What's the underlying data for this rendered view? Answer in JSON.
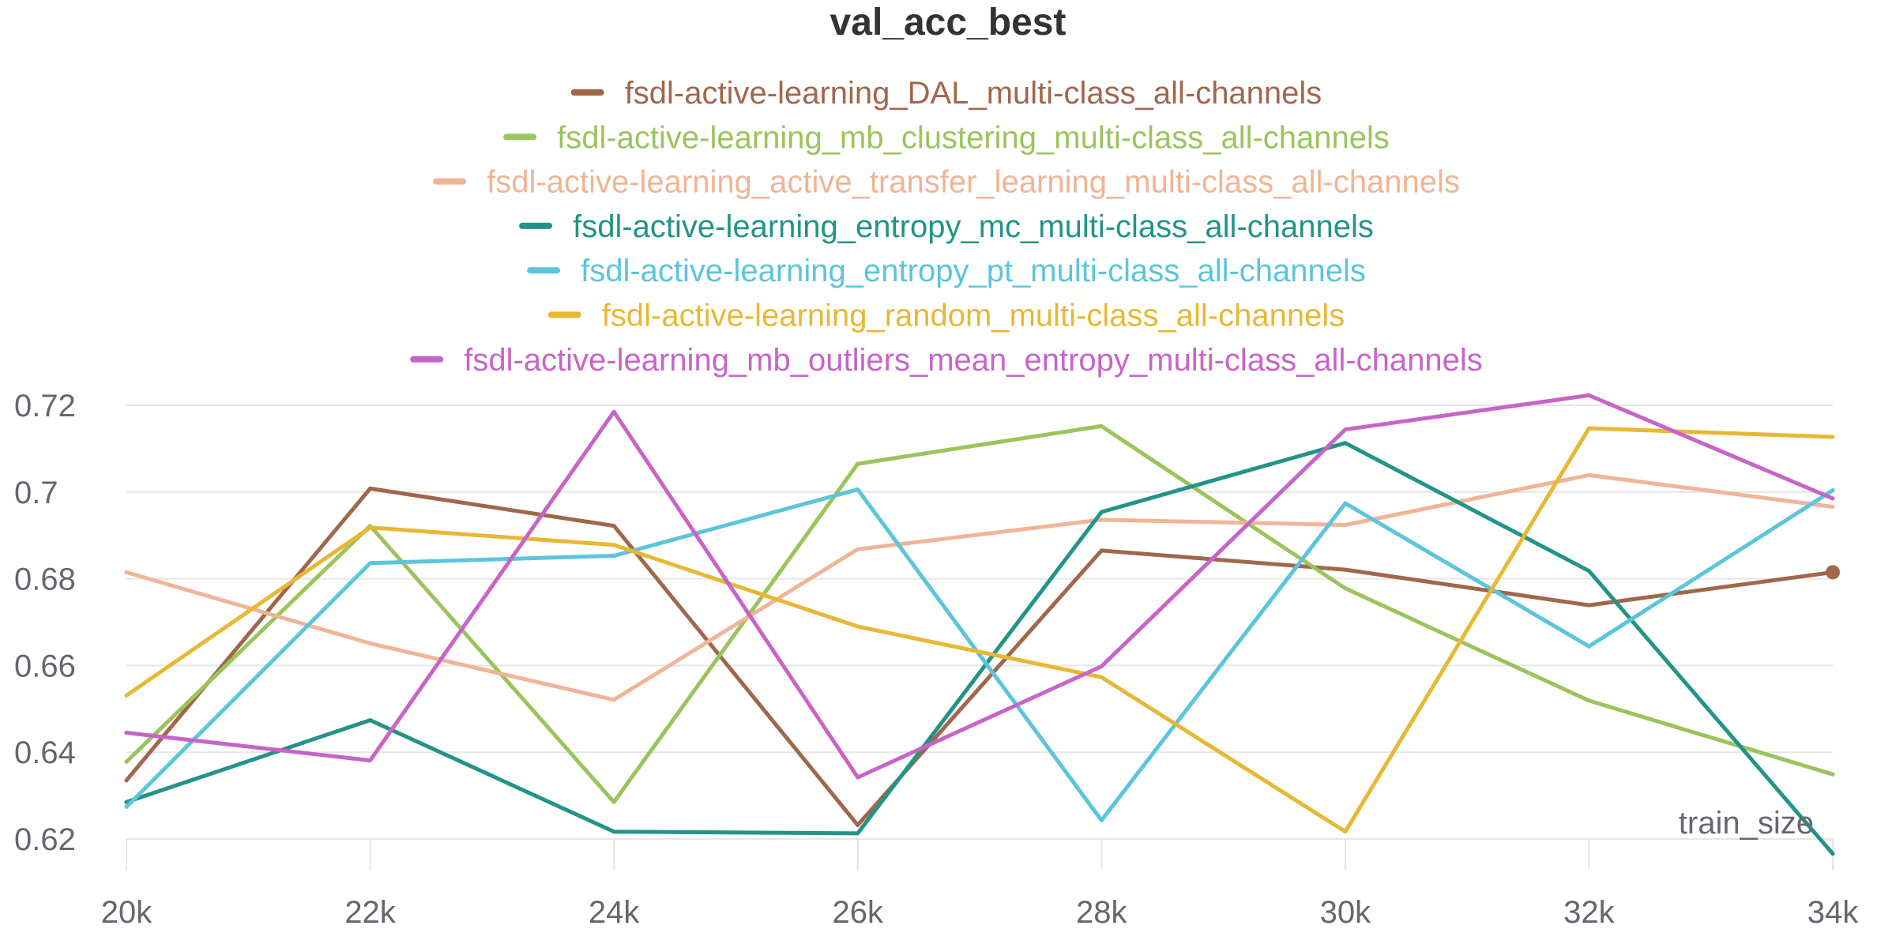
{
  "chart_data": {
    "type": "line",
    "title": "val_acc_best",
    "xlabel": "train_size",
    "ylabel": "",
    "x": [
      20000,
      22000,
      24000,
      26000,
      28000,
      30000,
      32000,
      34000
    ],
    "xticks": [
      "20k",
      "22k",
      "24k",
      "26k",
      "28k",
      "30k",
      "32k",
      "34k"
    ],
    "yticks": [
      "0.62",
      "0.64",
      "0.66",
      "0.68",
      "0.7",
      "0.72"
    ],
    "ylim": [
      0.62,
      0.72
    ],
    "grid": true,
    "legend_position": "top-center",
    "series": [
      {
        "name": "fsdl-active-learning_DAL_multi-class_all-channels",
        "color": "#a0674b",
        "values": [
          0.6335,
          0.7008,
          0.6922,
          0.6232,
          0.6865,
          0.6821,
          0.6739,
          0.6815
        ],
        "end_marker": true
      },
      {
        "name": "fsdl-active-learning_mb_clustering_multi-class_all-channels",
        "color": "#9bc45c",
        "values": [
          0.6378,
          0.6922,
          0.6285,
          0.7065,
          0.7152,
          0.6778,
          0.6519,
          0.6349
        ]
      },
      {
        "name": "fsdl-active-learning_active_transfer_learning_multi-class_all-channels",
        "color": "#efb596",
        "values": [
          0.6815,
          0.6651,
          0.6521,
          0.6868,
          0.6936,
          0.6924,
          0.7039,
          0.6966
        ]
      },
      {
        "name": "fsdl-active-learning_entropy_mc_multi-class_all-channels",
        "color": "#229487",
        "values": [
          0.6285,
          0.6474,
          0.6217,
          0.6213,
          0.6954,
          0.7113,
          0.6818,
          0.6166
        ]
      },
      {
        "name": "fsdl-active-learning_entropy_pt_multi-class_all-channels",
        "color": "#5bc5db",
        "values": [
          0.6274,
          0.6836,
          0.6853,
          0.7006,
          0.6243,
          0.6974,
          0.6644,
          0.7004
        ]
      },
      {
        "name": "fsdl-active-learning_random_multi-class_all-channels",
        "color": "#e8b834",
        "values": [
          0.6531,
          0.6918,
          0.6878,
          0.669,
          0.6573,
          0.6217,
          0.7147,
          0.7127
        ]
      },
      {
        "name": "fsdl-active-learning_mb_outliers_mean_entropy_multi-class_all-channels",
        "color": "#c764c8",
        "values": [
          0.6445,
          0.6381,
          0.7185,
          0.6342,
          0.6598,
          0.7144,
          0.7223,
          0.6985
        ]
      }
    ]
  }
}
